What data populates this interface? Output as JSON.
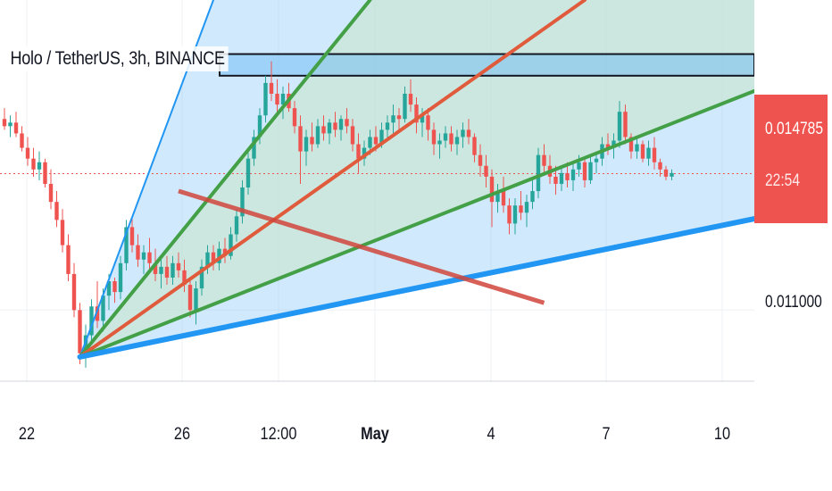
{
  "header": {
    "symbol_title": "Holo / TetherUS, 3h, BINANCE"
  },
  "price_axis": {
    "ticks": [
      "0.011000"
    ],
    "last_price": "0.014785",
    "countdown": "22:54",
    "last_price_color": "#ef5350"
  },
  "time_axis": {
    "labels": [
      "22",
      "26",
      "12:00",
      "May",
      "4",
      "7",
      "10"
    ]
  },
  "colors": {
    "up": "#26a69a",
    "down": "#ef5350",
    "fan_blue": "#2196f3",
    "fan_green": "#43a047",
    "fan_red": "#e05a3c",
    "zone_fill": "#90caf9"
  },
  "chart_data": {
    "type": "candlestick",
    "title": "Holo / TetherUS, 3h, BINANCE",
    "exchange": "BINANCE",
    "timeframe": "3h",
    "x_ticks": [
      "22",
      "26",
      "12:00",
      "May",
      "4",
      "7",
      "10"
    ],
    "y_ticks": [
      0.011
    ],
    "last_price": 0.014785,
    "ylim": [
      0.0092,
      0.0196
    ],
    "grid": true,
    "series": [
      {
        "ohlc": [
          [
            0.0163,
            0.0166,
            0.016,
            0.0161
          ],
          [
            0.0161,
            0.0164,
            0.0158,
            0.0162
          ],
          [
            0.0162,
            0.0165,
            0.0158,
            0.0159
          ],
          [
            0.0159,
            0.0161,
            0.0154,
            0.0155
          ],
          [
            0.0155,
            0.0158,
            0.015,
            0.0152
          ],
          [
            0.0152,
            0.0155,
            0.0147,
            0.0149
          ],
          [
            0.0149,
            0.0154,
            0.0146,
            0.0151
          ],
          [
            0.0151,
            0.0152,
            0.0144,
            0.0145
          ],
          [
            0.0145,
            0.0149,
            0.0138,
            0.014
          ],
          [
            0.014,
            0.0143,
            0.0133,
            0.0135
          ],
          [
            0.0135,
            0.0138,
            0.0126,
            0.0128
          ],
          [
            0.0128,
            0.0131,
            0.0118,
            0.012
          ],
          [
            0.012,
            0.0123,
            0.0108,
            0.011
          ],
          [
            0.011,
            0.0112,
            0.0095,
            0.0098
          ],
          [
            0.0098,
            0.0106,
            0.0094,
            0.0103
          ],
          [
            0.0103,
            0.0113,
            0.0101,
            0.0111
          ],
          [
            0.0111,
            0.0118,
            0.0105,
            0.0107
          ],
          [
            0.0107,
            0.0116,
            0.0104,
            0.0114
          ],
          [
            0.0114,
            0.012,
            0.011,
            0.0118
          ],
          [
            0.0118,
            0.0119,
            0.0112,
            0.0115
          ],
          [
            0.0115,
            0.0125,
            0.0113,
            0.0123
          ],
          [
            0.0123,
            0.0135,
            0.0121,
            0.0133
          ],
          [
            0.0133,
            0.0136,
            0.0126,
            0.0128
          ],
          [
            0.0128,
            0.0131,
            0.0122,
            0.0124
          ],
          [
            0.0124,
            0.0128,
            0.012,
            0.0126
          ],
          [
            0.0126,
            0.013,
            0.0121,
            0.0123
          ],
          [
            0.0123,
            0.0127,
            0.0118,
            0.012
          ],
          [
            0.012,
            0.0124,
            0.0116,
            0.0122
          ],
          [
            0.0122,
            0.0125,
            0.0117,
            0.0119
          ],
          [
            0.0119,
            0.0125,
            0.0117,
            0.0123
          ],
          [
            0.0123,
            0.0126,
            0.0119,
            0.0121
          ],
          [
            0.0121,
            0.0124,
            0.0115,
            0.0117
          ],
          [
            0.0117,
            0.0119,
            0.0108,
            0.011
          ],
          [
            0.011,
            0.0118,
            0.0106,
            0.0116
          ],
          [
            0.0116,
            0.0124,
            0.0114,
            0.0122
          ],
          [
            0.0122,
            0.0128,
            0.012,
            0.0126
          ],
          [
            0.0126,
            0.0128,
            0.0121,
            0.0123
          ],
          [
            0.0123,
            0.0129,
            0.0121,
            0.0127
          ],
          [
            0.0127,
            0.013,
            0.0123,
            0.0125
          ],
          [
            0.0125,
            0.0133,
            0.0124,
            0.0131
          ],
          [
            0.0131,
            0.0138,
            0.0129,
            0.0136
          ],
          [
            0.0136,
            0.0146,
            0.0134,
            0.0144
          ],
          [
            0.0144,
            0.0154,
            0.0142,
            0.0152
          ],
          [
            0.0152,
            0.016,
            0.015,
            0.0158
          ],
          [
            0.0158,
            0.0166,
            0.0156,
            0.0164
          ],
          [
            0.0164,
            0.0175,
            0.0162,
            0.0173
          ],
          [
            0.0173,
            0.0179,
            0.0168,
            0.017
          ],
          [
            0.017,
            0.0174,
            0.0165,
            0.0167
          ],
          [
            0.0167,
            0.0172,
            0.0163,
            0.017
          ],
          [
            0.017,
            0.0173,
            0.0165,
            0.0166
          ],
          [
            0.0166,
            0.0168,
            0.0159,
            0.0161
          ],
          [
            0.0161,
            0.0164,
            0.0145,
            0.0154
          ],
          [
            0.0154,
            0.016,
            0.015,
            0.0158
          ],
          [
            0.0158,
            0.0162,
            0.0154,
            0.0156
          ],
          [
            0.0156,
            0.0163,
            0.0155,
            0.0161
          ],
          [
            0.0161,
            0.0164,
            0.0157,
            0.0159
          ],
          [
            0.0159,
            0.0163,
            0.0156,
            0.0162
          ],
          [
            0.0162,
            0.0165,
            0.0158,
            0.016
          ],
          [
            0.016,
            0.0164,
            0.0157,
            0.0163
          ],
          [
            0.0163,
            0.0166,
            0.0159,
            0.0161
          ],
          [
            0.0161,
            0.0163,
            0.0154,
            0.0156
          ],
          [
            0.0156,
            0.0159,
            0.0148,
            0.0152
          ],
          [
            0.0152,
            0.0157,
            0.015,
            0.0155
          ],
          [
            0.0155,
            0.016,
            0.0153,
            0.0158
          ],
          [
            0.0158,
            0.0161,
            0.0154,
            0.0156
          ],
          [
            0.0156,
            0.0162,
            0.0155,
            0.016
          ],
          [
            0.016,
            0.0164,
            0.0157,
            0.0162
          ],
          [
            0.0162,
            0.0167,
            0.0159,
            0.0164
          ],
          [
            0.0164,
            0.0166,
            0.016,
            0.0163
          ],
          [
            0.0163,
            0.0172,
            0.0162,
            0.017
          ],
          [
            0.017,
            0.0174,
            0.0165,
            0.0167
          ],
          [
            0.0167,
            0.0169,
            0.0159,
            0.0162
          ],
          [
            0.0162,
            0.0166,
            0.0158,
            0.0164
          ],
          [
            0.0164,
            0.0166,
            0.0157,
            0.016
          ],
          [
            0.016,
            0.0162,
            0.0153,
            0.0156
          ],
          [
            0.0156,
            0.0159,
            0.0152,
            0.0157
          ],
          [
            0.0157,
            0.0161,
            0.0155,
            0.0159
          ],
          [
            0.0159,
            0.0161,
            0.0154,
            0.0156
          ],
          [
            0.0156,
            0.016,
            0.0153,
            0.0158
          ],
          [
            0.0158,
            0.0162,
            0.0155,
            0.016
          ],
          [
            0.016,
            0.0163,
            0.0156,
            0.0158
          ],
          [
            0.0158,
            0.0159,
            0.0151,
            0.0153
          ],
          [
            0.0153,
            0.0156,
            0.0147,
            0.015
          ],
          [
            0.015,
            0.0153,
            0.0144,
            0.0147
          ],
          [
            0.0147,
            0.0149,
            0.0133,
            0.014
          ],
          [
            0.014,
            0.0145,
            0.0137,
            0.0143
          ],
          [
            0.0143,
            0.0147,
            0.0137,
            0.0139
          ],
          [
            0.0139,
            0.0141,
            0.0131,
            0.0134
          ],
          [
            0.0134,
            0.0141,
            0.0131,
            0.0139
          ],
          [
            0.0139,
            0.0143,
            0.0135,
            0.0137
          ],
          [
            0.0137,
            0.0142,
            0.0133,
            0.014
          ],
          [
            0.014,
            0.0146,
            0.0138,
            0.0143
          ],
          [
            0.0143,
            0.0155,
            0.0141,
            0.0153
          ],
          [
            0.0153,
            0.0156,
            0.0148,
            0.015
          ],
          [
            0.015,
            0.0153,
            0.0145,
            0.0147
          ],
          [
            0.0147,
            0.015,
            0.0142,
            0.0145
          ],
          [
            0.0145,
            0.015,
            0.0143,
            0.0148
          ],
          [
            0.0148,
            0.0151,
            0.0144,
            0.0146
          ],
          [
            0.0146,
            0.0151,
            0.0143,
            0.0149
          ],
          [
            0.0149,
            0.0153,
            0.0147,
            0.0151
          ],
          [
            0.0151,
            0.0152,
            0.0144,
            0.0146
          ],
          [
            0.0146,
            0.0153,
            0.0145,
            0.0151
          ],
          [
            0.0151,
            0.0154,
            0.0148,
            0.0152
          ],
          [
            0.0152,
            0.0158,
            0.015,
            0.0156
          ],
          [
            0.0156,
            0.0159,
            0.0153,
            0.0155
          ],
          [
            0.0155,
            0.0159,
            0.0152,
            0.0157
          ],
          [
            0.0157,
            0.0168,
            0.0155,
            0.0165
          ],
          [
            0.0165,
            0.0167,
            0.0156,
            0.0158
          ],
          [
            0.0158,
            0.0159,
            0.0152,
            0.0154
          ],
          [
            0.0154,
            0.0158,
            0.0152,
            0.0156
          ],
          [
            0.0156,
            0.0157,
            0.0151,
            0.0152
          ],
          [
            0.0152,
            0.0157,
            0.015,
            0.0155
          ],
          [
            0.0155,
            0.0158,
            0.0149,
            0.0151
          ],
          [
            0.0151,
            0.0152,
            0.0147,
            0.0149
          ],
          [
            0.0149,
            0.015,
            0.0146,
            0.0147
          ],
          [
            0.0147,
            0.0149,
            0.0146,
            0.0148
          ]
        ]
      }
    ],
    "drawings": {
      "fan_lines": [
        {
          "color": "blue",
          "from": [
            13,
            0.0097
          ],
          "to": [
            36,
            0.0196
          ]
        },
        {
          "color": "green",
          "from": [
            13,
            0.0097
          ],
          "to": [
            63,
            0.0196
          ]
        },
        {
          "color": "red",
          "from": [
            13,
            0.0097
          ],
          "to": [
            100,
            0.0196
          ]
        },
        {
          "color": "green",
          "from": [
            13,
            0.0097
          ],
          "to": [
            169,
            0.0196
          ]
        },
        {
          "color": "blue",
          "from": [
            13,
            0.0097
          ],
          "to": [
            192,
            0.0156
          ]
        }
      ],
      "diagonal": {
        "color": "red",
        "from": [
          30,
          0.0143
        ],
        "to": [
          93,
          0.0112
        ]
      },
      "zone": {
        "top": 0.0181,
        "bottom": 0.0175
      }
    }
  }
}
